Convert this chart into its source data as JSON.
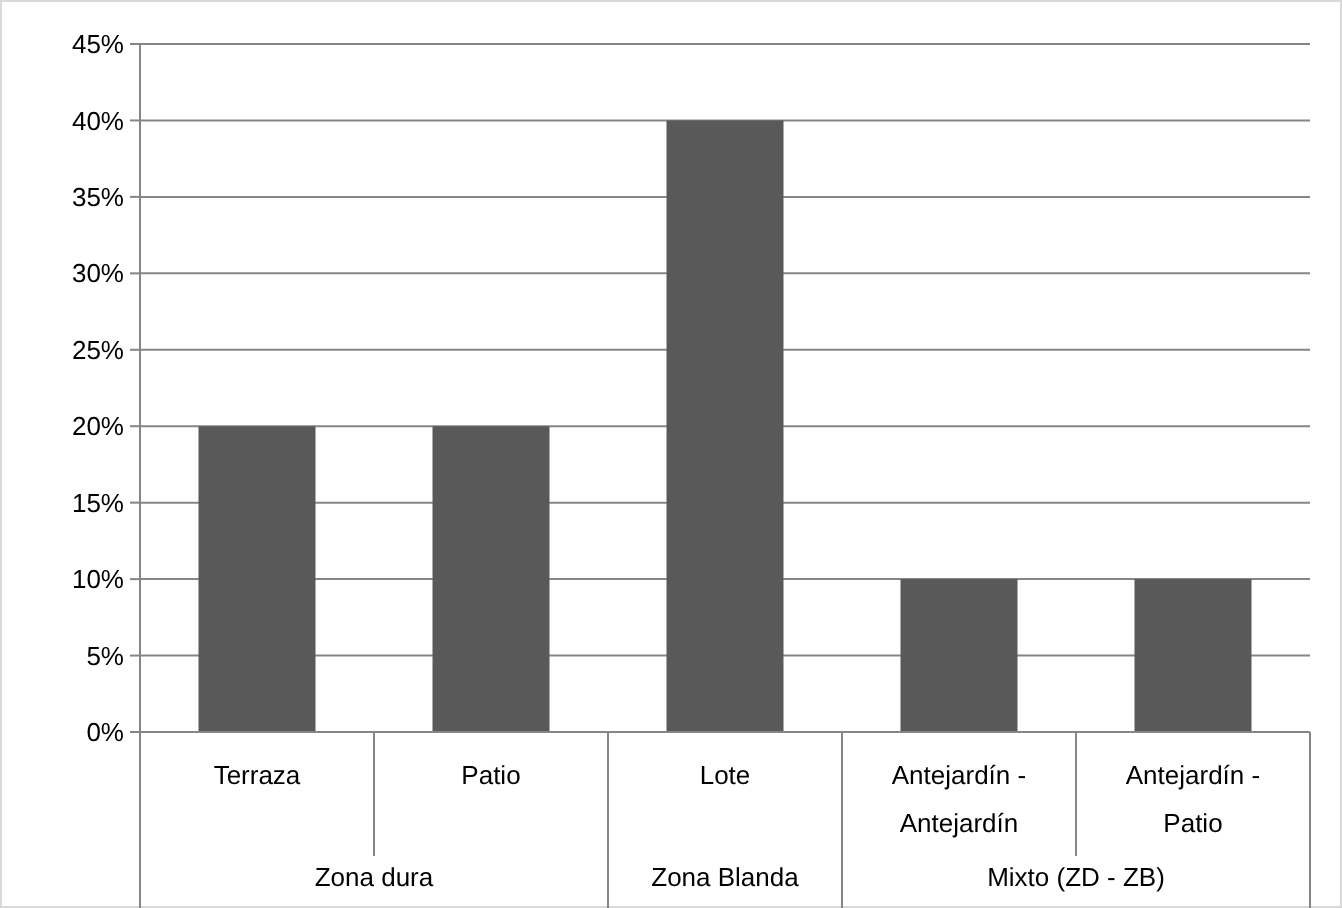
{
  "chart_data": {
    "type": "bar",
    "categories": [
      "Terraza",
      "Patio",
      "Lote",
      "Antejardín - Antejardín",
      "Antejardín - Patio"
    ],
    "values": [
      20,
      20,
      40,
      10,
      10
    ],
    "color": "#595959",
    "ylim": [
      0,
      45
    ],
    "yticks": [
      {
        "value": 0,
        "label": "0%"
      },
      {
        "value": 5,
        "label": "5%"
      },
      {
        "value": 10,
        "label": "10%"
      },
      {
        "value": 15,
        "label": "15%"
      },
      {
        "value": 20,
        "label": "20%"
      },
      {
        "value": 25,
        "label": "25%"
      },
      {
        "value": 30,
        "label": "30%"
      },
      {
        "value": 35,
        "label": "35%"
      },
      {
        "value": 40,
        "label": "40%"
      },
      {
        "value": 45,
        "label": "45%"
      }
    ],
    "grid": "y",
    "annotations": [
      "Zona dura",
      "Zona Blanda",
      "Mixto (ZD - ZB)"
    ]
  }
}
